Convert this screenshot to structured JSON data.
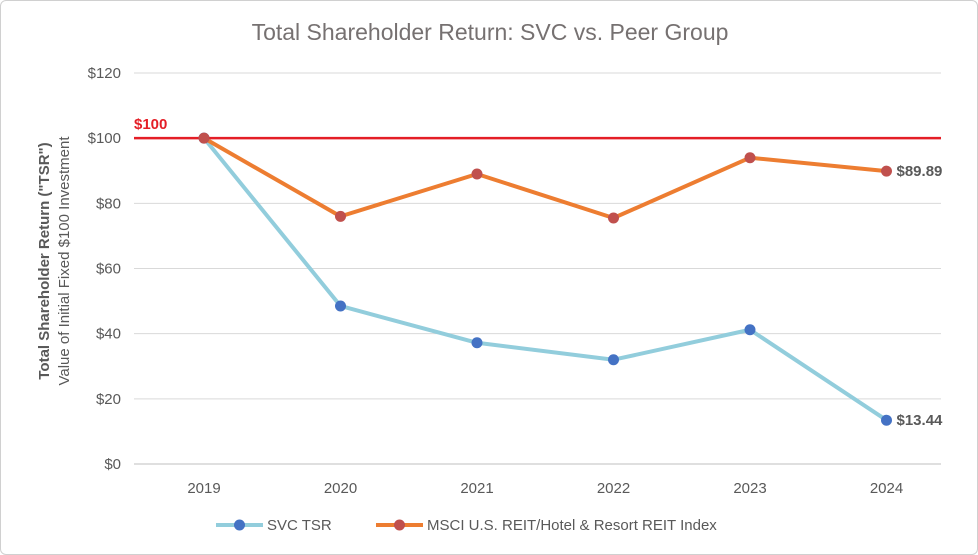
{
  "chart_data": {
    "type": "line",
    "title": "Total Shareholder Return: SVC vs. Peer Group",
    "ylabel": "Total Shareholder Return (\"TSR\")",
    "ylabel_sub": "Value of Initial Fixed $100 Investment",
    "xlabel": "",
    "categories": [
      "2019",
      "2020",
      "2021",
      "2022",
      "2023",
      "2024"
    ],
    "ylim": [
      0,
      120
    ],
    "yticks": [
      0,
      20,
      40,
      60,
      80,
      100,
      120
    ],
    "ytick_labels": [
      "$0",
      "$20",
      "$40",
      "$60",
      "$80",
      "$100",
      "$120"
    ],
    "grid": true,
    "reference_line": {
      "value": 100,
      "label": "$100",
      "color": "#E41E26"
    },
    "series": [
      {
        "name": "SVC TSR",
        "line_color": "#92CDDC",
        "marker_color": "#4472C4",
        "values": [
          100,
          48.5,
          37.2,
          32.0,
          41.2,
          13.44
        ],
        "end_label": "$13.44"
      },
      {
        "name": "MSCI U.S. REIT/Hotel & Resort REIT Index",
        "line_color": "#ED7D31",
        "marker_color": "#C0504D",
        "values": [
          100,
          76.0,
          89.0,
          75.5,
          94.0,
          89.89
        ],
        "end_label": "$89.89"
      }
    ],
    "legend_position": "bottom"
  }
}
